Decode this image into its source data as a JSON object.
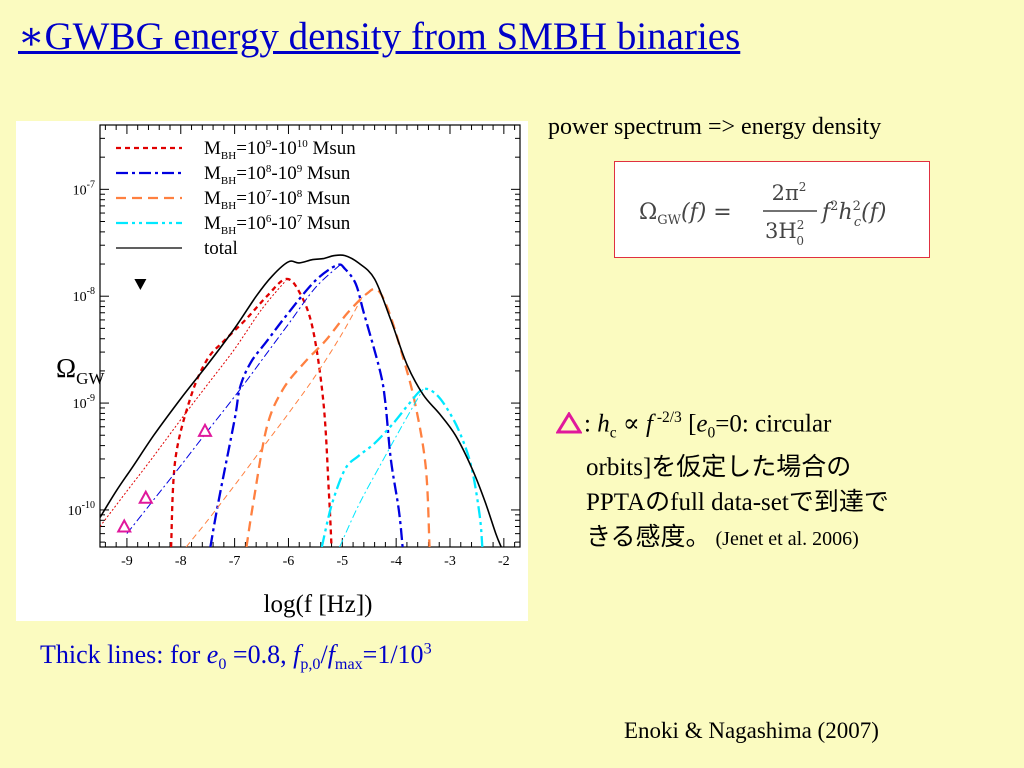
{
  "slide": {
    "title": "∗GWBG energy density from SMBH binaries",
    "power_spectrum_text": "power spectrum  => energy density",
    "formula": {
      "lhs_symbol": "Ω",
      "lhs_sub": "GW",
      "lhs_arg": "(f) =",
      "num_coef": "2π",
      "num_exp": "2",
      "den": "3H",
      "den_sub": "0",
      "den_sup": "2",
      "rhs_f": "f",
      "rhs_f_exp": "2",
      "rhs_h": "h",
      "rhs_h_sup": "2",
      "rhs_h_sub": "c",
      "rhs_arg": "(f)"
    },
    "note": {
      "colon": ": ",
      "h": "h",
      "h_sub": "c",
      "propto": " ∝ ",
      "f": "f",
      "f_exp": " -2/3",
      "bracket_open": " [",
      "e": "e",
      "e_sub": "0",
      "e_rest": "=0: circular",
      "line2": "orbits]を仮定した場合の",
      "line3": "PPTAのfull data-setで到達で",
      "line4": "きる感度。",
      "citation": " (Jenet et al. 2006)"
    },
    "thick_lines": {
      "prefix": "Thick lines: for ",
      "e": "e",
      "e_sub": "0",
      "e_val": " =0.8,  ",
      "f1": "f",
      "f1_sub": "p,0",
      "slash": "/",
      "f2": "f",
      "f2_sub": "max",
      "ratio": "=1/10",
      "ratio_exp": "3"
    },
    "credit": "Enoki & Nagashima  (2007)"
  },
  "chart_data": {
    "type": "line",
    "log_y": true,
    "xlim": [
      -9.5,
      -1.7
    ],
    "ylim": [
      4.5e-11,
      4e-07
    ],
    "x_ticks": [
      -9,
      -8,
      -7,
      -6,
      -5,
      -4,
      -3,
      -2
    ],
    "y_ticks": [
      {
        "value": 1e-07,
        "base": "10",
        "exp": "-7"
      },
      {
        "value": 1e-08,
        "base": "10",
        "exp": "-8"
      },
      {
        "value": 1e-09,
        "base": "10",
        "exp": "-9"
      },
      {
        "value": 1e-10,
        "base": "10",
        "exp": "-10"
      }
    ],
    "xlabel": "log(f [Hz])",
    "ylabel": "Ω",
    "ylabel_sub": "GW",
    "legend_position": "top-left",
    "series": [
      {
        "name": "M_BH=10^9-10^10 Msun",
        "legend": {
          "pre": "M",
          "sub": "BH",
          "mid1": "=10",
          "sup1": "9",
          "mid2": "-10",
          "sup2": "10",
          "post": " Msun"
        },
        "color": "#e00000",
        "dash": "5,4",
        "style": "thick",
        "x": [
          -8.18,
          -8.1,
          -7.8,
          -7.5,
          -7.2,
          -6.8,
          -6.4,
          -6.05,
          -5.8,
          -5.55,
          -5.35,
          -5.25,
          -5.2
        ],
        "y": [
          4.5e-11,
          3e-10,
          1.2e-09,
          2.6e-09,
          3.8e-09,
          6e-09,
          1e-08,
          1.45e-08,
          1.1e-08,
          5e-09,
          1e-09,
          1.5e-10,
          4.5e-11
        ]
      },
      {
        "name": "M_BH=10^8-10^9 Msun",
        "legend": {
          "pre": "M",
          "sub": "BH",
          "mid1": "=10",
          "sup1": "8",
          "mid2": "-10",
          "sup2": "9",
          "post": "  Msun"
        },
        "color": "#0000e0",
        "dash": "12,4,3,4",
        "style": "thick",
        "x": [
          -7.45,
          -7.3,
          -7.0,
          -6.9,
          -6.7,
          -6.4,
          -6.0,
          -5.5,
          -5.1,
          -4.95,
          -4.75,
          -4.6,
          -4.3,
          -4.2,
          -4.1,
          -3.95,
          -3.88
        ],
        "y": [
          4.5e-11,
          1.2e-10,
          7e-10,
          1.4e-09,
          2.4e-09,
          3.8e-09,
          7e-09,
          1.4e-08,
          1.95e-08,
          1.8e-08,
          1.3e-08,
          7e-09,
          2e-09,
          1e-09,
          3e-10,
          1e-10,
          4.5e-11
        ]
      },
      {
        "name": "M_BH=10^7-10^8 Msun",
        "legend": {
          "pre": "M",
          "sub": "BH",
          "mid1": "=10",
          "sup1": "7",
          "mid2": "-10",
          "sup2": "8",
          "post": "  Msun"
        },
        "color": "#ff8040",
        "dash": "10,6",
        "style": "thick",
        "x": [
          -6.78,
          -6.65,
          -6.4,
          -6.1,
          -5.7,
          -5.3,
          -4.9,
          -4.55,
          -4.35,
          -4.15,
          -3.9,
          -3.65,
          -3.45,
          -3.38
        ],
        "y": [
          4.5e-11,
          1.2e-10,
          6e-10,
          1.35e-09,
          2.4e-09,
          3.9e-09,
          7e-09,
          1.05e-08,
          1.15e-08,
          7.5e-09,
          3e-09,
          1e-09,
          2.5e-10,
          4.5e-11
        ]
      },
      {
        "name": "M_BH=10^6-10^7 Msun",
        "legend": {
          "pre": "M",
          "sub": "BH",
          "mid1": "=10",
          "sup1": "6",
          "mid2": "-10",
          "sup2": "7",
          "post": "  Msun"
        },
        "color": "#00e8ff",
        "dash": "12,4,3,4,3,4",
        "style": "thick",
        "x": [
          -5.38,
          -5.2,
          -4.95,
          -4.7,
          -4.4,
          -4.05,
          -3.75,
          -3.5,
          -3.25,
          -3.0,
          -2.8,
          -2.6,
          -2.45,
          -2.4
        ],
        "y": [
          4.5e-11,
          1.1e-10,
          2.4e-10,
          3.2e-10,
          4.2e-10,
          6.5e-10,
          1e-09,
          1.35e-09,
          1.2e-09,
          8e-10,
          5e-10,
          2.5e-10,
          9e-11,
          4.5e-11
        ]
      },
      {
        "name": "total",
        "legend": {
          "pre": "total"
        },
        "color": "#000000",
        "dash": "",
        "style": "thick",
        "x": [
          -9.5,
          -9.2,
          -8.9,
          -8.5,
          -8.0,
          -7.5,
          -7.0,
          -6.6,
          -6.3,
          -6.0,
          -5.8,
          -5.55,
          -5.35,
          -5.15,
          -4.95,
          -4.7,
          -4.4,
          -4.1,
          -3.8,
          -3.5,
          -3.2,
          -2.9,
          -2.6,
          -2.35,
          -2.15,
          -2.05
        ],
        "y": [
          8.5e-11,
          1.5e-10,
          2.5e-10,
          5e-10,
          1.1e-09,
          2.3e-09,
          5e-09,
          1e-08,
          1.55e-08,
          2.1e-08,
          2.05e-08,
          2.2e-08,
          2.25e-08,
          2.4e-08,
          2.4e-08,
          2.05e-08,
          1.45e-08,
          6e-09,
          2.3e-09,
          1.2e-09,
          8e-10,
          5e-10,
          2.5e-10,
          1.2e-10,
          6e-11,
          4.5e-11
        ]
      },
      {
        "name": "",
        "color": "#e00000",
        "dash": "2,2",
        "style": "thin",
        "x": [
          -9.5,
          -9.0,
          -8.5,
          -8.0,
          -7.5,
          -7.0,
          -6.5,
          -6.05
        ],
        "y": [
          7e-11,
          1.5e-10,
          3.2e-10,
          7e-10,
          1.5e-09,
          3.2e-09,
          7.5e-09,
          1.4e-08
        ]
      },
      {
        "name": "",
        "color": "#0000e0",
        "dash": "8,3,2,3",
        "style": "thin",
        "x": [
          -9.0,
          -8.5,
          -8.0,
          -7.5,
          -7.0,
          -6.5,
          -6.0,
          -5.5,
          -5.05
        ],
        "y": [
          6e-11,
          1.25e-10,
          2.6e-10,
          5.5e-10,
          1.15e-09,
          2.5e-09,
          5.5e-09,
          1.2e-08,
          1.95e-08
        ]
      },
      {
        "name": "",
        "color": "#ff8040",
        "dash": "6,4",
        "style": "thin",
        "x": [
          -7.9,
          -7.5,
          -7.0,
          -6.5,
          -6.0,
          -5.5,
          -5.0,
          -4.6
        ],
        "y": [
          4.5e-11,
          8e-11,
          1.7e-10,
          3.7e-10,
          8e-10,
          1.8e-09,
          4.5e-09,
          1.05e-08
        ]
      },
      {
        "name": "",
        "color": "#00e8ff",
        "dash": "8,3,2,3",
        "style": "thin",
        "x": [
          -5.05,
          -4.7,
          -4.3,
          -3.9,
          -3.5
        ],
        "y": [
          4.5e-11,
          1.1e-10,
          2.6e-10,
          6e-10,
          1.35e-09
        ]
      }
    ],
    "markers": {
      "triangles_up": {
        "label": "PPTA full data-set sensitivity",
        "color": "#e0189c",
        "x": [
          -9.05,
          -8.65,
          -7.55
        ],
        "y": [
          7e-11,
          1.3e-10,
          5.5e-10
        ]
      },
      "triangle_down": {
        "label": "upper limit",
        "color": "#000000",
        "x": [
          -8.75
        ],
        "y": [
          1.3e-08
        ]
      }
    }
  }
}
